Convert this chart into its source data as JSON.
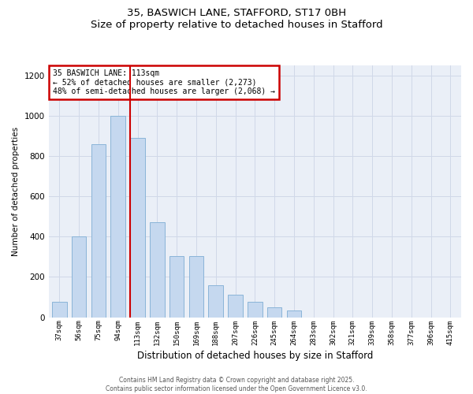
{
  "title1": "35, BASWICH LANE, STAFFORD, ST17 0BH",
  "title2": "Size of property relative to detached houses in Stafford",
  "xlabel": "Distribution of detached houses by size in Stafford",
  "ylabel": "Number of detached properties",
  "categories": [
    "37sqm",
    "56sqm",
    "75sqm",
    "94sqm",
    "113sqm",
    "132sqm",
    "150sqm",
    "169sqm",
    "188sqm",
    "207sqm",
    "226sqm",
    "245sqm",
    "264sqm",
    "283sqm",
    "302sqm",
    "321sqm",
    "339sqm",
    "358sqm",
    "377sqm",
    "396sqm",
    "415sqm"
  ],
  "values": [
    75,
    400,
    860,
    1000,
    890,
    470,
    305,
    305,
    160,
    110,
    75,
    50,
    35,
    0,
    0,
    0,
    0,
    0,
    0,
    0,
    0
  ],
  "bar_color": "#c5d8ef",
  "bar_edge_color": "#8ab4d8",
  "vline_color": "#cc0000",
  "vline_index": 4,
  "annotation_title": "35 BASWICH LANE: 113sqm",
  "annotation_line1": "← 52% of detached houses are smaller (2,273)",
  "annotation_line2": "48% of semi-detached houses are larger (2,068) →",
  "annotation_box_color": "#cc0000",
  "ylim": [
    0,
    1250
  ],
  "yticks": [
    0,
    200,
    400,
    600,
    800,
    1000,
    1200
  ],
  "grid_color": "#d0d8e8",
  "bg_color": "#eaeff7",
  "footer1": "Contains HM Land Registry data © Crown copyright and database right 2025.",
  "footer2": "Contains public sector information licensed under the Open Government Licence v3.0."
}
